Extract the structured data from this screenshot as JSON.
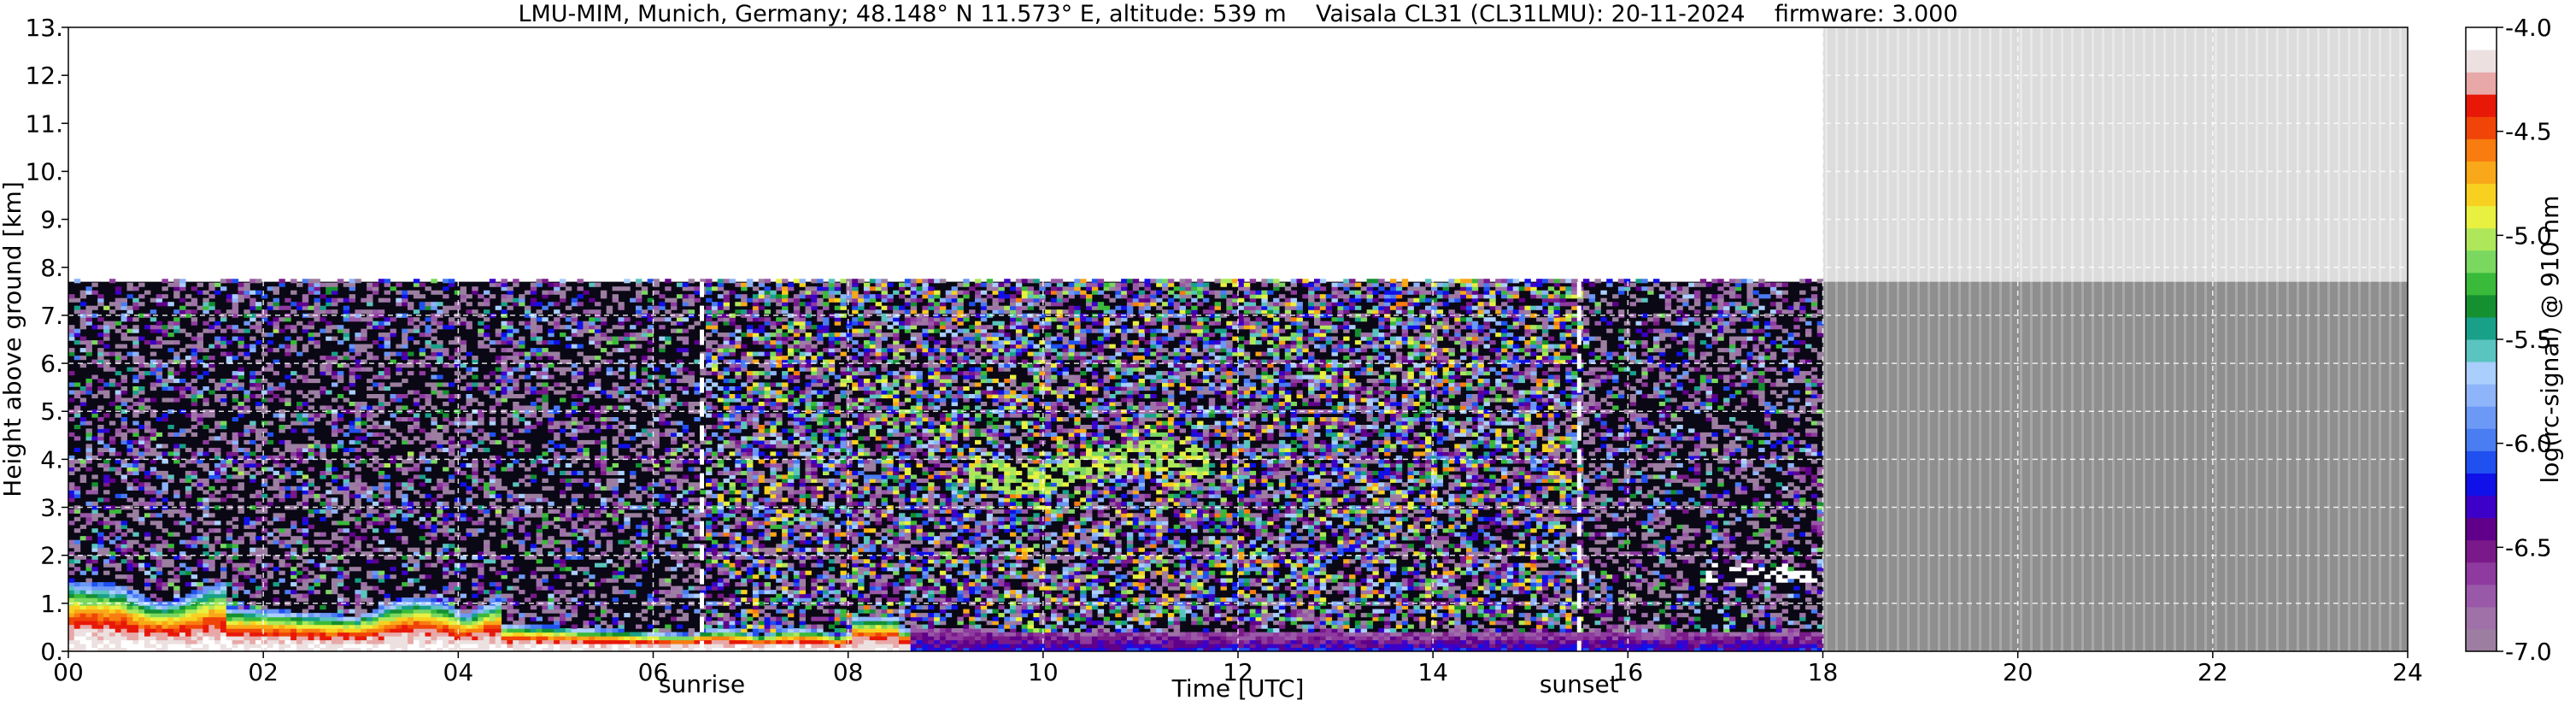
{
  "chart_data": {
    "type": "heatmap",
    "title": "LMU-MIM, Munich, Germany; 48.148° N 11.573° E, altitude: 539 m    Vaisala CL31 (CL31LMU): 20-11-2024    firmware: 3.000",
    "xlabel": "Time [UTC]",
    "ylabel": "Height above ground [km]",
    "xlim": [
      0,
      24
    ],
    "ylim": [
      0,
      13
    ],
    "x_ticks": [
      0,
      2,
      4,
      6,
      8,
      10,
      12,
      14,
      16,
      18,
      20,
      22,
      24
    ],
    "x_tick_labels": [
      "00",
      "02",
      "04",
      "06",
      "08",
      "10",
      "12",
      "14",
      "16",
      "18",
      "20",
      "22",
      "24"
    ],
    "y_ticks": [
      0,
      1,
      2,
      3,
      4,
      5,
      6,
      7,
      8,
      9,
      10,
      11,
      12,
      13
    ],
    "y_tick_labels": [
      "0.",
      "1.",
      "2.",
      "3.",
      "4.",
      "5.",
      "6.",
      "7.",
      "8.",
      "9.",
      "10.",
      "11.",
      "12.",
      "13."
    ],
    "grid": true,
    "grid_style": "dashed white, every 1 km and every 2 h",
    "data_end_time": 18,
    "max_range_km": 7.7,
    "markers": [
      {
        "label": "sunrise",
        "time": 6.5
      },
      {
        "label": "sunset",
        "time": 15.5
      }
    ],
    "colorbar": {
      "label": "log(rc-signal) @ 910 nm",
      "min": -7.0,
      "max": -4.0,
      "ticks": [
        -7.0,
        -6.5,
        -6.0,
        -5.5,
        -5.0,
        -4.5,
        -4.0
      ],
      "tick_labels": [
        "-7.0",
        "-6.5",
        "-6.0",
        "-5.5",
        "-5.0",
        "-4.5",
        "-4.0"
      ],
      "colors": [
        "#9c7fa0",
        "#a070a8",
        "#9a58a8",
        "#8e3a9e",
        "#7a1a8a",
        "#60008a",
        "#3c00c8",
        "#1010e8",
        "#2050f0",
        "#4a7cf2",
        "#6c98f6",
        "#8eb4fa",
        "#aacffd",
        "#5ac4be",
        "#18a088",
        "#149030",
        "#3aba3a",
        "#7ad860",
        "#aee85a",
        "#e8f040",
        "#f8d020",
        "#f8a818",
        "#f87c10",
        "#f04408",
        "#e81808",
        "#e8a8a8",
        "#ece0e0",
        "#ffffff"
      ]
    },
    "features": [
      {
        "name": "boundary layer aerosol",
        "t_start": 0,
        "t_end": 18,
        "top_km": 1.6
      },
      {
        "name": "mid-level cloud",
        "t_start": 9.2,
        "t_end": 11.7,
        "height_km": 3.9
      },
      {
        "name": "thin cloud",
        "t_start": 16.8,
        "t_end": 17.9,
        "height_km": 1.6
      }
    ]
  }
}
